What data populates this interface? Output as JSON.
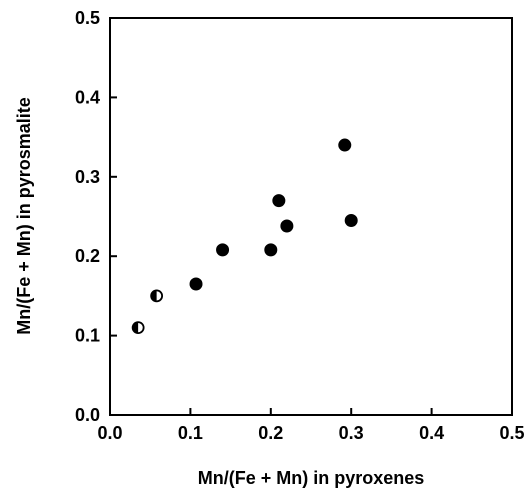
{
  "chart_data": {
    "type": "scatter",
    "title": "",
    "xlabel": "Mn/(Fe + Mn) in pyroxenes",
    "ylabel": "Mn/(Fe + Mn) in pyrosmalite",
    "xlim": [
      0.0,
      0.5
    ],
    "ylim": [
      0.0,
      0.5
    ],
    "x_ticks": [
      "0.0",
      "0.1",
      "0.2",
      "0.3",
      "0.4",
      "0.5"
    ],
    "y_ticks": [
      "0.0",
      "0.1",
      "0.2",
      "0.3",
      "0.4",
      "0.5"
    ],
    "grid": false,
    "legend": "none",
    "series": [
      {
        "marker": "filled-circle",
        "points": [
          {
            "x": 0.107,
            "y": 0.165
          },
          {
            "x": 0.14,
            "y": 0.208
          },
          {
            "x": 0.2,
            "y": 0.208
          },
          {
            "x": 0.21,
            "y": 0.27
          },
          {
            "x": 0.22,
            "y": 0.238
          },
          {
            "x": 0.292,
            "y": 0.34
          },
          {
            "x": 0.3,
            "y": 0.245
          }
        ]
      },
      {
        "marker": "half-filled-circle",
        "points": [
          {
            "x": 0.035,
            "y": 0.11
          },
          {
            "x": 0.058,
            "y": 0.15
          }
        ]
      }
    ]
  }
}
